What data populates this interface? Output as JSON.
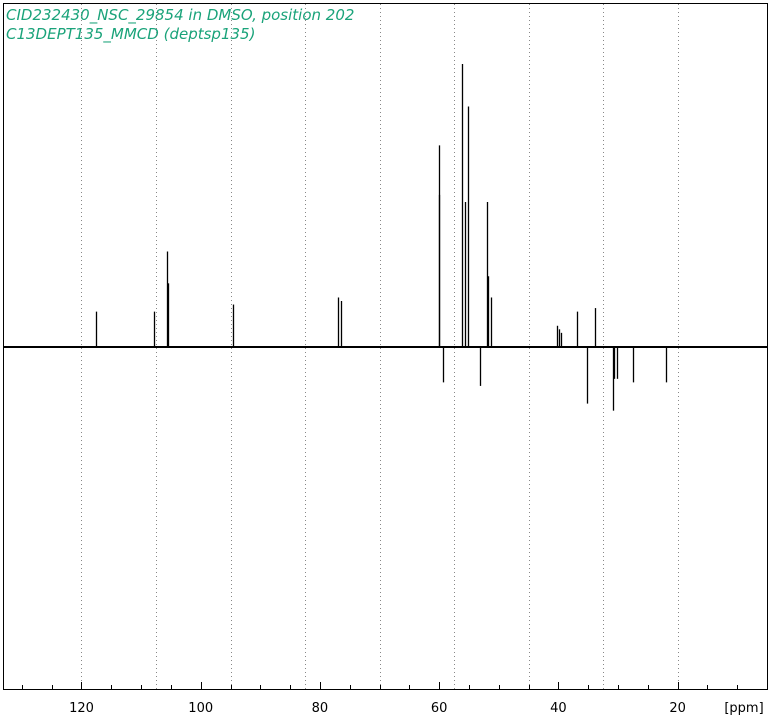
{
  "header": {
    "line1": "CID232430_NSC_29854 in DMSO, position 202",
    "line2": "C13DEPT135_MMCD (deptsp135)"
  },
  "colors": {
    "title": "#1aa37a",
    "trace": "#000000",
    "grid": "#888888"
  },
  "chart_data": {
    "type": "line",
    "title": "CID232430_NSC_29854 in DMSO, position 202",
    "subtitle": "C13DEPT135_MMCD (deptsp135)",
    "xlabel": "[ppm]",
    "ylabel": "",
    "x_reversed": true,
    "xlim": [
      133,
      5
    ],
    "ylim": [
      -0.98,
      0.8
    ],
    "grid": "vertical dotted",
    "x_ticks": [
      120,
      100,
      80,
      60,
      40,
      20
    ],
    "x_tick_labels": [
      "120",
      "100",
      "80",
      "60",
      "40",
      "20"
    ],
    "x_unit_label": "[ppm]",
    "grid_lines": [
      120,
      107.5,
      95,
      82.5,
      70,
      57.5,
      45,
      32.5,
      20
    ],
    "peaks": [
      {
        "ppm": 117.6,
        "intensity": 0.1
      },
      {
        "ppm": 107.8,
        "intensity": 0.1
      },
      {
        "ppm": 105.6,
        "intensity": 0.27
      },
      {
        "ppm": 105.5,
        "intensity": 0.18
      },
      {
        "ppm": 94.5,
        "intensity": 0.12
      },
      {
        "ppm": 77.0,
        "intensity": 0.14
      },
      {
        "ppm": 76.4,
        "intensity": 0.13
      },
      {
        "ppm": 60.1,
        "intensity": 0.57
      },
      {
        "ppm": 60.0,
        "intensity": 0.43
      },
      {
        "ppm": 59.3,
        "intensity": -0.1
      },
      {
        "ppm": 56.1,
        "intensity": 0.8
      },
      {
        "ppm": 55.6,
        "intensity": 0.41
      },
      {
        "ppm": 55.2,
        "intensity": 0.68
      },
      {
        "ppm": 53.2,
        "intensity": -0.11
      },
      {
        "ppm": 52.0,
        "intensity": 0.41
      },
      {
        "ppm": 51.8,
        "intensity": 0.2
      },
      {
        "ppm": 51.3,
        "intensity": 0.14
      },
      {
        "ppm": 40.2,
        "intensity": 0.06
      },
      {
        "ppm": 39.9,
        "intensity": 0.05
      },
      {
        "ppm": 39.6,
        "intensity": 0.04
      },
      {
        "ppm": 36.8,
        "intensity": 0.1
      },
      {
        "ppm": 35.2,
        "intensity": -0.16
      },
      {
        "ppm": 33.8,
        "intensity": 0.11
      },
      {
        "ppm": 30.9,
        "intensity": -0.18
      },
      {
        "ppm": 30.6,
        "intensity": -0.09
      },
      {
        "ppm": 30.2,
        "intensity": -0.09
      },
      {
        "ppm": 27.4,
        "intensity": -0.1
      },
      {
        "ppm": 21.9,
        "intensity": -0.1
      }
    ]
  }
}
